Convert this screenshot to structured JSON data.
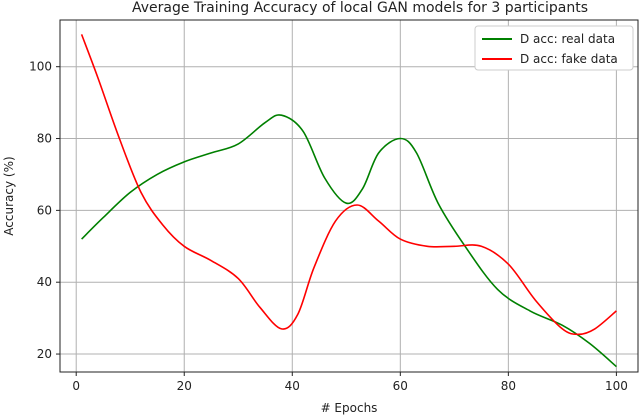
{
  "chart_data": {
    "type": "line",
    "title": "Average Training Accuracy of local GAN models for 3 participants",
    "xlabel": "# Epochs",
    "ylabel": "Accuracy (%)",
    "xlim": [
      -3,
      104
    ],
    "ylim": [
      15,
      113
    ],
    "xticks": [
      0,
      20,
      40,
      60,
      80,
      100
    ],
    "yticks": [
      20,
      40,
      60,
      80,
      100
    ],
    "grid": true,
    "legend_position": "top-right",
    "series": [
      {
        "name": "D acc: real data",
        "color": "#008000",
        "x": [
          1,
          5,
          10,
          15,
          20,
          25,
          30,
          35,
          38,
          42,
          46,
          50,
          53,
          56,
          60,
          63,
          67,
          72,
          78,
          84,
          90,
          95,
          100
        ],
        "y": [
          52,
          58,
          65,
          70,
          73.5,
          76,
          78.5,
          84.5,
          86.5,
          82,
          69,
          62,
          66,
          76,
          80,
          76,
          62,
          50,
          38,
          32,
          28,
          23,
          16.5
        ]
      },
      {
        "name": "D acc: fake data",
        "color": "#ff0000",
        "x": [
          1,
          4,
          8,
          12,
          16,
          20,
          25,
          30,
          34,
          38,
          41,
          44,
          48,
          52,
          56,
          60,
          65,
          70,
          75,
          80,
          85,
          90,
          93,
          96,
          100
        ],
        "y": [
          109,
          97,
          80,
          65,
          56,
          50,
          46,
          41,
          33,
          27,
          31,
          44,
          57,
          61.5,
          57,
          52,
          50,
          50,
          50,
          45,
          35,
          27,
          25.5,
          27,
          32
        ]
      }
    ]
  }
}
